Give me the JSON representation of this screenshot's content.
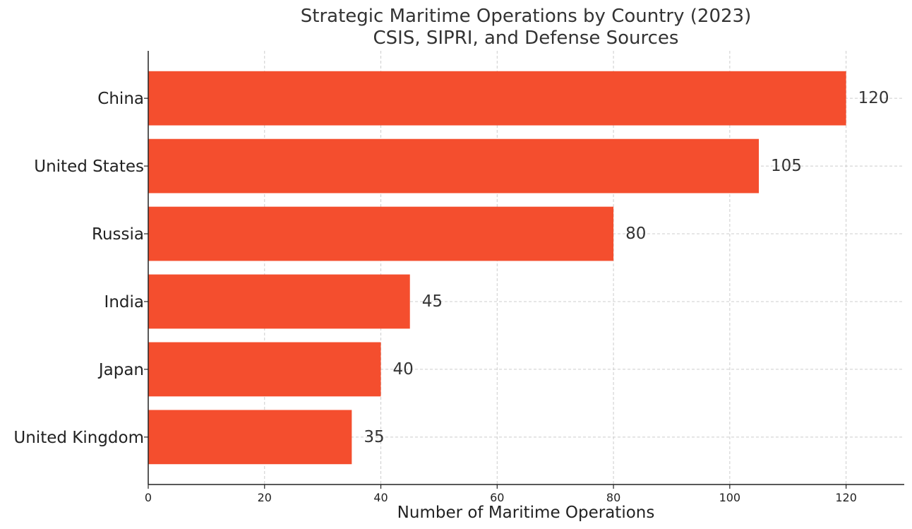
{
  "chart_data": {
    "type": "bar",
    "orientation": "horizontal",
    "title": "Strategic Maritime Operations by Country (2023)",
    "subtitle": "CSIS, SIPRI, and Defense Sources",
    "xlabel": "Number of Maritime Operations",
    "ylabel": "",
    "categories": [
      "China",
      "United States",
      "Russia",
      "India",
      "Japan",
      "United Kingdom"
    ],
    "values": [
      120,
      105,
      80,
      45,
      40,
      35
    ],
    "value_labels": [
      "120",
      "105",
      "80",
      "45",
      "40",
      "35"
    ],
    "xlim": [
      0,
      130
    ],
    "xticks": [
      0,
      20,
      40,
      60,
      80,
      100,
      120
    ],
    "xtick_labels": [
      "0",
      "20",
      "40",
      "60",
      "80",
      "100",
      "120"
    ],
    "grid": true,
    "legend": "none",
    "colors": {
      "bar": "#f44e2e",
      "grid": "#cccccc",
      "axis": "#222222"
    }
  }
}
